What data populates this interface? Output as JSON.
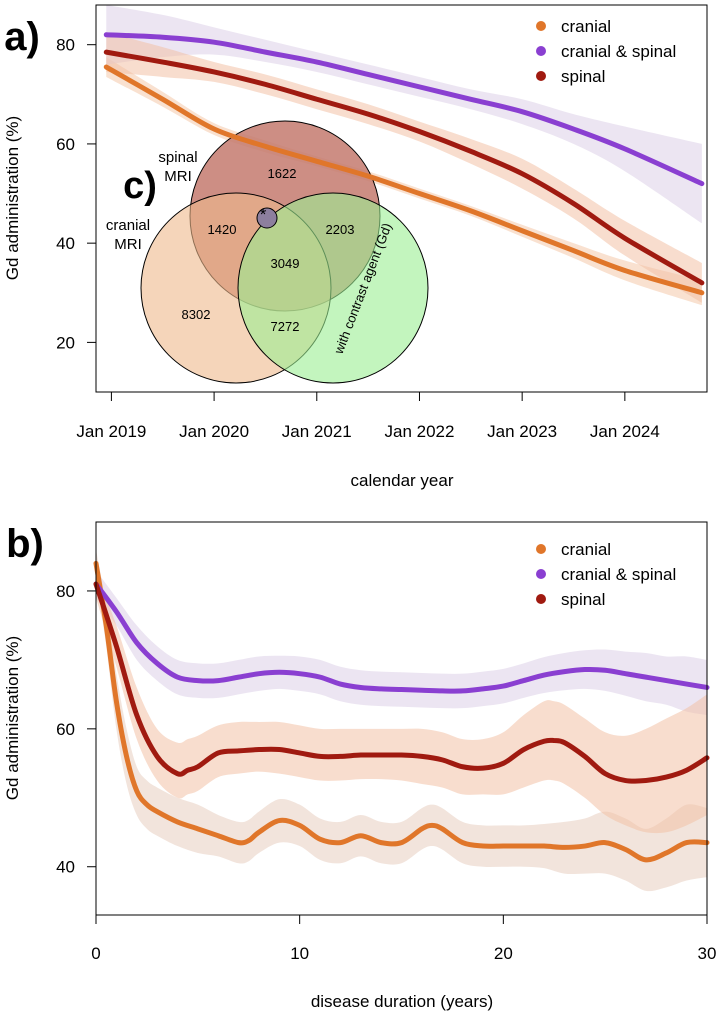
{
  "chart_data": [
    {
      "panel_label": "a)",
      "type": "line",
      "title": "",
      "xlabel": "calendar year",
      "ylabel": "Gd administration (%)",
      "xlim": [
        2018.85,
        2024.8
      ],
      "ylim": [
        10,
        88
      ],
      "xticks": [
        2019,
        2020,
        2021,
        2022,
        2023,
        2024
      ],
      "xtick_labels": [
        "Jan 2019",
        "Jan 2020",
        "Jan 2021",
        "Jan 2022",
        "Jan 2023",
        "Jan 2024"
      ],
      "yticks": [
        20,
        40,
        60,
        80
      ],
      "ytick_labels": [
        "20",
        "40",
        "60",
        "80"
      ],
      "legend": "top-right",
      "series": [
        {
          "name": "cranial",
          "color": "#E0762A",
          "band_color": "#F4C9A9",
          "x": [
            2018.95,
            2019.5,
            2020,
            2020.5,
            2021,
            2021.5,
            2022,
            2022.5,
            2023,
            2023.5,
            2024,
            2024.75
          ],
          "y": [
            75.5,
            69,
            63,
            59.5,
            56.5,
            53.5,
            50,
            46.5,
            42.5,
            38.5,
            34.5,
            30
          ],
          "lower": [
            73.5,
            67.5,
            61.8,
            58.3,
            55.5,
            52.5,
            49,
            45.5,
            41.3,
            37,
            32.5,
            27.5
          ],
          "upper": [
            77.5,
            70.5,
            64.2,
            60.7,
            57.5,
            54.5,
            51,
            47.5,
            43.7,
            40,
            36.5,
            32.5
          ]
        },
        {
          "name": "cranial & spinal",
          "color": "#8A3FD1",
          "band_color": "#DCD0E8",
          "x": [
            2018.95,
            2019.5,
            2020,
            2020.5,
            2021,
            2021.5,
            2022,
            2022.5,
            2023,
            2023.5,
            2024,
            2024.75
          ],
          "y": [
            82,
            81.5,
            80.5,
            78.5,
            76.5,
            74,
            71.5,
            69,
            66.5,
            63,
            59,
            52
          ],
          "lower": [
            76,
            77.5,
            78,
            76.5,
            74.5,
            72,
            69.5,
            67,
            64,
            60,
            54.5,
            44
          ],
          "upper": [
            88,
            86,
            83.5,
            81,
            78.5,
            76,
            73.5,
            71,
            69,
            66,
            63.5,
            60
          ]
        },
        {
          "name": "spinal",
          "color": "#A01A10",
          "band_color": "#F3C1A6",
          "x": [
            2018.95,
            2019.5,
            2020,
            2020.5,
            2021,
            2021.5,
            2022,
            2022.5,
            2023,
            2023.5,
            2024,
            2024.75
          ],
          "y": [
            78.5,
            76.5,
            74.5,
            72,
            69,
            66,
            62.5,
            58.5,
            54,
            48,
            41,
            32
          ],
          "lower": [
            74.5,
            73.5,
            72.5,
            70,
            67,
            64,
            60.5,
            56,
            51,
            45,
            37.5,
            28
          ],
          "upper": [
            82.5,
            79.5,
            76.5,
            74,
            71,
            68,
            64.5,
            61,
            57,
            51,
            44.5,
            36
          ]
        }
      ],
      "inset": {
        "panel_label": "c)",
        "type": "venn",
        "sets": [
          {
            "name": "spinal MRI",
            "label_lines": [
              "spinal",
              "MRI"
            ],
            "color": "#C47A6E"
          },
          {
            "name": "cranial MRI",
            "label_lines": [
              "cranial",
              "MRI"
            ],
            "color": "#EFB98C"
          },
          {
            "name": "with contrast agent (Gd)",
            "label_lines": [
              "with contrast agent (Gd)"
            ],
            "color": "#9BEE93"
          }
        ],
        "regions": [
          {
            "sets": [
              "spinal MRI"
            ],
            "value": "1622"
          },
          {
            "sets": [
              "cranial MRI",
              "spinal MRI"
            ],
            "value": "1420"
          },
          {
            "sets": [
              "spinal MRI",
              "with contrast agent (Gd)"
            ],
            "value": "2203"
          },
          {
            "sets": [
              "cranial MRI",
              "spinal MRI",
              "with contrast agent (Gd)"
            ],
            "value": "3049"
          },
          {
            "sets": [
              "cranial MRI"
            ],
            "value": "8302"
          },
          {
            "sets": [
              "cranial MRI",
              "with contrast agent (Gd)"
            ],
            "value": "7272"
          }
        ],
        "marker": "*"
      }
    },
    {
      "panel_label": "b)",
      "type": "line",
      "title": "",
      "xlabel": "disease duration (years)",
      "ylabel": "Gd administration (%)",
      "xlim": [
        0,
        30
      ],
      "ylim": [
        33,
        90
      ],
      "xticks": [
        0,
        10,
        20,
        30
      ],
      "xtick_labels": [
        "0",
        "10",
        "20",
        "30"
      ],
      "yticks": [
        40,
        60,
        80
      ],
      "ytick_labels": [
        "40",
        "60",
        "80"
      ],
      "legend": "top-right",
      "series": [
        {
          "name": "cranial",
          "color": "#E0762A",
          "band_color": "#E8CEC0",
          "x": [
            0,
            0.5,
            1,
            1.5,
            2,
            2.5,
            3,
            4,
            5,
            6,
            7,
            7.5,
            8,
            9,
            10,
            11,
            12,
            13,
            14,
            15,
            16,
            16.5,
            17,
            18,
            19,
            20,
            21,
            22,
            23,
            24,
            25,
            26,
            27,
            28,
            29,
            30
          ],
          "y": [
            84,
            75,
            64,
            56,
            51,
            49,
            48,
            46.5,
            45.5,
            44.5,
            43.5,
            43.8,
            45,
            46.7,
            46,
            44,
            43.5,
            44.5,
            43.5,
            43.5,
            45.5,
            46,
            45.5,
            43.5,
            43,
            43,
            43,
            43,
            42.8,
            43,
            43.5,
            42.5,
            41,
            42,
            43.5,
            43.5
          ],
          "lower": [
            82,
            72,
            60,
            52,
            47.5,
            45.5,
            44.5,
            43,
            42,
            41.5,
            40.5,
            40.8,
            42,
            43.5,
            43,
            41,
            40.5,
            41.5,
            40.5,
            40.5,
            42.5,
            43,
            42.5,
            40.5,
            40,
            40,
            40,
            39.8,
            39,
            39,
            39,
            38,
            36.5,
            37,
            38,
            38.5
          ],
          "upper": [
            86,
            78,
            68,
            60,
            54.5,
            52.5,
            51.5,
            50,
            49,
            47.5,
            46.5,
            46.8,
            48,
            49.8,
            49,
            47,
            46.5,
            47.5,
            46.5,
            46.5,
            48.5,
            49,
            48.5,
            46.5,
            46,
            46,
            46,
            46.2,
            46.5,
            47,
            48,
            47,
            45.5,
            47,
            49,
            48.5
          ]
        },
        {
          "name": "cranial & spinal",
          "color": "#8A3FD1",
          "band_color": "#DCD0E8",
          "x": [
            0,
            1,
            2,
            3,
            4,
            5,
            6,
            7,
            8,
            9,
            10,
            11,
            12,
            13,
            14,
            15,
            16,
            17,
            18,
            19,
            20,
            21,
            22,
            23,
            24,
            25,
            26,
            27,
            28,
            29,
            30
          ],
          "y": [
            81,
            77,
            72.5,
            69.5,
            67.5,
            67,
            67,
            67.5,
            68,
            68.2,
            68,
            67.5,
            66.5,
            66,
            65.8,
            65.7,
            65.6,
            65.5,
            65.5,
            65.8,
            66.2,
            67,
            67.8,
            68.3,
            68.6,
            68.5,
            68,
            67.5,
            67,
            66.5,
            66
          ],
          "lower": [
            79,
            75,
            70,
            67,
            65,
            64.5,
            64.5,
            65,
            65.5,
            65.8,
            65.5,
            65,
            64,
            63.5,
            63.3,
            63.2,
            63.1,
            63,
            63,
            63.3,
            63.7,
            64.5,
            65.2,
            65.6,
            65.8,
            65.5,
            64.8,
            64,
            63.5,
            62.5,
            62
          ],
          "upper": [
            83,
            79,
            75,
            72,
            70,
            69.5,
            69.5,
            70,
            70.5,
            70.6,
            70.5,
            70,
            69,
            68.5,
            68.3,
            68.2,
            68.1,
            68,
            68,
            68.3,
            68.7,
            69.5,
            70.4,
            71,
            71.4,
            71.5,
            71.2,
            71,
            70.5,
            70.5,
            70
          ]
        },
        {
          "name": "spinal",
          "color": "#A01A10",
          "band_color": "#F3C1A6",
          "x": [
            0,
            1,
            2,
            3,
            4,
            4.5,
            5,
            6,
            7,
            8,
            9,
            10,
            11,
            12,
            13,
            14,
            15,
            16,
            17,
            18,
            19,
            20,
            21,
            22,
            22.5,
            23,
            24,
            25,
            26,
            27,
            28,
            29,
            30
          ],
          "y": [
            81,
            72,
            62,
            56,
            53.5,
            54,
            54.5,
            56.5,
            56.8,
            57,
            57,
            56.5,
            56,
            56,
            56.2,
            56.2,
            56.2,
            56,
            55.5,
            54.5,
            54.3,
            55,
            57,
            58.2,
            58.3,
            58,
            56,
            53.5,
            52.5,
            52.5,
            53,
            54,
            55.8
          ],
          "lower": [
            79,
            69,
            58.5,
            52.5,
            50,
            50.5,
            51,
            53,
            53.5,
            53.8,
            53.5,
            53,
            52.5,
            52.5,
            52.7,
            52.7,
            52.5,
            52,
            51.5,
            50.5,
            50.5,
            50.5,
            51.5,
            52.5,
            52.5,
            52,
            50,
            47.5,
            46,
            45,
            45,
            46,
            47.5
          ],
          "upper": [
            83,
            75,
            66,
            60,
            58,
            58.5,
            59,
            60.5,
            61,
            61,
            61,
            60.5,
            60,
            60,
            60,
            60,
            60,
            60,
            59.5,
            58.5,
            58.5,
            59.5,
            62,
            64,
            64,
            63.5,
            61.5,
            59.5,
            59,
            60,
            61.5,
            63,
            65
          ]
        }
      ]
    }
  ]
}
